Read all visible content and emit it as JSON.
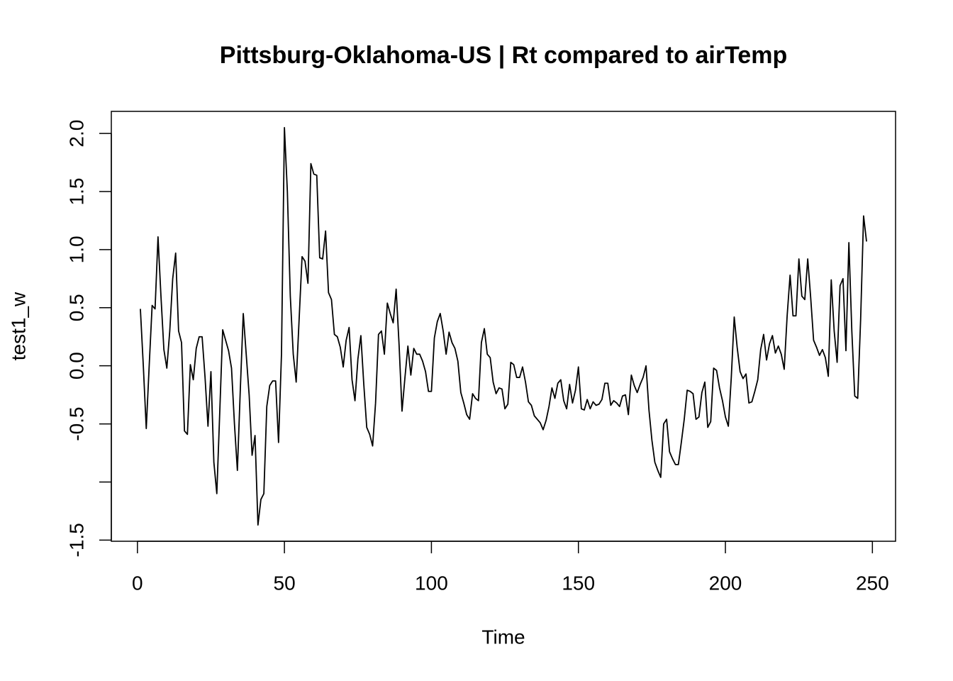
{
  "chart_data": {
    "type": "line",
    "title": "Pittsburg-Oklahoma-US | Rt compared to airTemp",
    "xlabel": "Time",
    "ylabel": "test1_w",
    "color": "#000000",
    "xlim": [
      -8.88,
      257.88
    ],
    "xticks": [
      0,
      50,
      100,
      150,
      200,
      250
    ],
    "ylim": [
      -1.51,
      2.19
    ],
    "yticks": [
      {
        "value": -1.5,
        "label": "-1.5"
      },
      {
        "value": -1
      },
      {
        "value": -0.5,
        "label": "-0.5"
      },
      {
        "value": 0,
        "label": "0.0"
      },
      {
        "value": 0.5,
        "label": "0.5"
      },
      {
        "value": 1,
        "label": "1.0"
      },
      {
        "value": 1.5,
        "label": "1.5"
      },
      {
        "value": 2,
        "label": "2.0"
      }
    ],
    "x": [
      1,
      2,
      3,
      4,
      5,
      6,
      7,
      8,
      9,
      10,
      11,
      12,
      13,
      14,
      15,
      16,
      17,
      18,
      19,
      20,
      21,
      22,
      23,
      24,
      25,
      26,
      27,
      28,
      29,
      30,
      31,
      32,
      33,
      34,
      35,
      36,
      37,
      38,
      39,
      40,
      41,
      42,
      43,
      44,
      45,
      46,
      47,
      48,
      49,
      50,
      51,
      52,
      53,
      54,
      55,
      56,
      57,
      58,
      59,
      60,
      61,
      62,
      63,
      64,
      65,
      66,
      67,
      68,
      69,
      70,
      71,
      72,
      73,
      74,
      75,
      76,
      77,
      78,
      79,
      80,
      81,
      82,
      83,
      84,
      85,
      86,
      87,
      88,
      89,
      90,
      91,
      92,
      93,
      94,
      95,
      96,
      97,
      98,
      99,
      100,
      101,
      102,
      103,
      104,
      105,
      106,
      107,
      108,
      109,
      110,
      111,
      112,
      113,
      114,
      115,
      116,
      117,
      118,
      119,
      120,
      121,
      122,
      123,
      124,
      125,
      126,
      127,
      128,
      129,
      130,
      131,
      132,
      133,
      134,
      135,
      136,
      137,
      138,
      139,
      140,
      141,
      142,
      143,
      144,
      145,
      146,
      147,
      148,
      149,
      150,
      151,
      152,
      153,
      154,
      155,
      156,
      157,
      158,
      159,
      160,
      161,
      162,
      163,
      164,
      165,
      166,
      167,
      168,
      169,
      170,
      171,
      172,
      173,
      174,
      175,
      176,
      177,
      178,
      179,
      180,
      181,
      182,
      183,
      184,
      185,
      186,
      187,
      188,
      189,
      190,
      191,
      192,
      193,
      194,
      195,
      196,
      197,
      198,
      199,
      200,
      201,
      202,
      203,
      204,
      205,
      206,
      207,
      208,
      209,
      210,
      211,
      212,
      213,
      214,
      215,
      216,
      217,
      218,
      219,
      220,
      221,
      222,
      223,
      224,
      225,
      226,
      227,
      228,
      229,
      230,
      231,
      232,
      233,
      234,
      235,
      236,
      237,
      238,
      239,
      240,
      241,
      242,
      243,
      244,
      245,
      246,
      247,
      248
    ],
    "values": [
      0.49,
      0.0,
      -0.54,
      0.0,
      0.52,
      0.49,
      1.11,
      0.6,
      0.14,
      -0.02,
      0.3,
      0.75,
      0.97,
      0.3,
      0.2,
      -0.56,
      -0.59,
      0.01,
      -0.12,
      0.15,
      0.25,
      0.25,
      -0.1,
      -0.52,
      -0.05,
      -0.83,
      -1.1,
      -0.4,
      0.31,
      0.22,
      0.13,
      -0.02,
      -0.5,
      -0.9,
      -0.2,
      0.45,
      0.1,
      -0.25,
      -0.77,
      -0.6,
      -1.37,
      -1.15,
      -1.1,
      -0.35,
      -0.17,
      -0.13,
      -0.13,
      -0.66,
      0.1,
      2.05,
      1.5,
      0.6,
      0.1,
      -0.14,
      0.4,
      0.94,
      0.9,
      0.71,
      1.74,
      1.65,
      1.64,
      0.93,
      0.92,
      1.16,
      0.63,
      0.57,
      0.27,
      0.25,
      0.16,
      -0.01,
      0.22,
      0.33,
      -0.12,
      -0.3,
      0.06,
      0.26,
      -0.16,
      -0.53,
      -0.59,
      -0.69,
      -0.32,
      0.27,
      0.3,
      0.1,
      0.54,
      0.45,
      0.37,
      0.66,
      0.18,
      -0.39,
      -0.1,
      0.17,
      -0.08,
      0.15,
      0.1,
      0.1,
      0.04,
      -0.05,
      -0.22,
      -0.22,
      0.24,
      0.38,
      0.45,
      0.3,
      0.1,
      0.29,
      0.2,
      0.15,
      0.04,
      -0.23,
      -0.32,
      -0.42,
      -0.46,
      -0.24,
      -0.28,
      -0.3,
      0.2,
      0.32,
      0.1,
      0.07,
      -0.14,
      -0.24,
      -0.19,
      -0.2,
      -0.37,
      -0.33,
      0.03,
      0.01,
      -0.1,
      -0.1,
      -0.01,
      -0.14,
      -0.31,
      -0.34,
      -0.43,
      -0.46,
      -0.49,
      -0.55,
      -0.47,
      -0.35,
      -0.19,
      -0.28,
      -0.15,
      -0.12,
      -0.3,
      -0.37,
      -0.16,
      -0.32,
      -0.21,
      -0.01,
      -0.37,
      -0.38,
      -0.29,
      -0.37,
      -0.31,
      -0.34,
      -0.33,
      -0.29,
      -0.15,
      -0.15,
      -0.34,
      -0.3,
      -0.32,
      -0.35,
      -0.26,
      -0.25,
      -0.42,
      -0.08,
      -0.17,
      -0.23,
      -0.16,
      -0.1,
      0.0,
      -0.38,
      -0.64,
      -0.83,
      -0.9,
      -0.96,
      -0.5,
      -0.46,
      -0.74,
      -0.8,
      -0.85,
      -0.85,
      -0.66,
      -0.46,
      -0.21,
      -0.22,
      -0.24,
      -0.46,
      -0.44,
      -0.23,
      -0.14,
      -0.53,
      -0.48,
      -0.02,
      -0.04,
      -0.19,
      -0.3,
      -0.44,
      -0.52,
      -0.1,
      0.42,
      0.16,
      -0.05,
      -0.11,
      -0.07,
      -0.32,
      -0.31,
      -0.22,
      -0.12,
      0.14,
      0.27,
      0.05,
      0.19,
      0.26,
      0.11,
      0.17,
      0.1,
      -0.03,
      0.43,
      0.78,
      0.43,
      0.43,
      0.92,
      0.6,
      0.57,
      0.92,
      0.59,
      0.22,
      0.16,
      0.09,
      0.14,
      0.07,
      -0.09,
      0.74,
      0.3,
      0.03,
      0.69,
      0.75,
      0.13,
      1.06,
      0.3,
      -0.26,
      -0.28,
      0.4,
      1.29,
      1.07
    ]
  }
}
